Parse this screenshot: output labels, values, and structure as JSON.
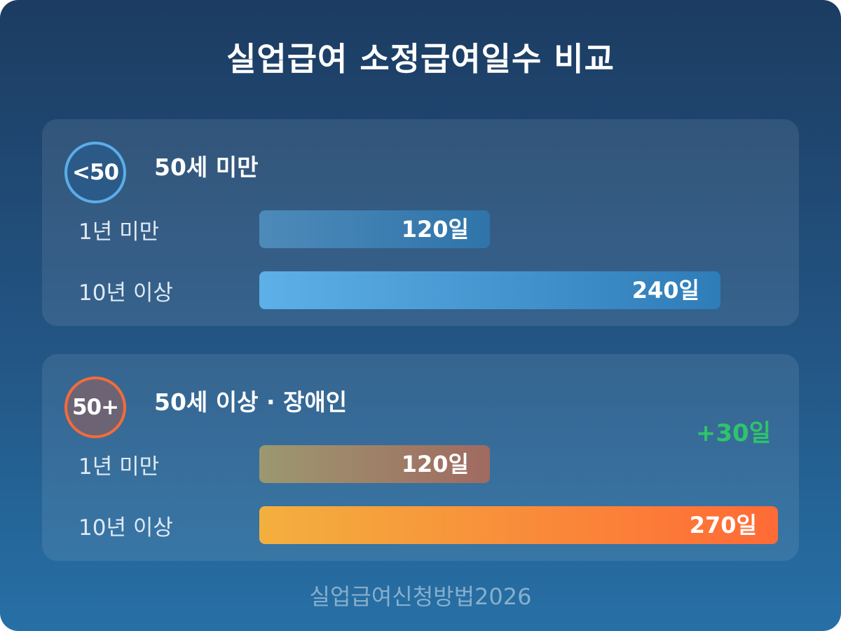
{
  "title": "실업급여 소정급여일수 비교",
  "footer": "실업급여신청방법2026",
  "colors": {
    "background_top": "#1c3c62",
    "background_bottom": "#2670a6",
    "badge_under_ring": "#5aaee8",
    "badge_over_ring": "#f26c3a",
    "bonus_text": "#2fc46b",
    "bar_over_10_start": "#f3b03e",
    "bar_over_10_end": "#ff6a36"
  },
  "chart_data": {
    "type": "bar",
    "orientation": "horizontal",
    "title": "실업급여 소정급여일수 비교",
    "xlim": [
      0,
      270
    ],
    "grid": false,
    "groups": [
      {
        "badge": "<50",
        "name": "50세 미만",
        "annotation": "",
        "categories": [
          "1년 미만",
          "10년 이상"
        ],
        "values": [
          120,
          240
        ],
        "value_labels": [
          "120일",
          "240일"
        ]
      },
      {
        "badge": "50+",
        "name": "50세 이상 · 장애인",
        "annotation": "+30일",
        "categories": [
          "1년 미만",
          "10년 이상"
        ],
        "values": [
          120,
          270
        ],
        "value_labels": [
          "120일",
          "270일"
        ]
      }
    ]
  }
}
